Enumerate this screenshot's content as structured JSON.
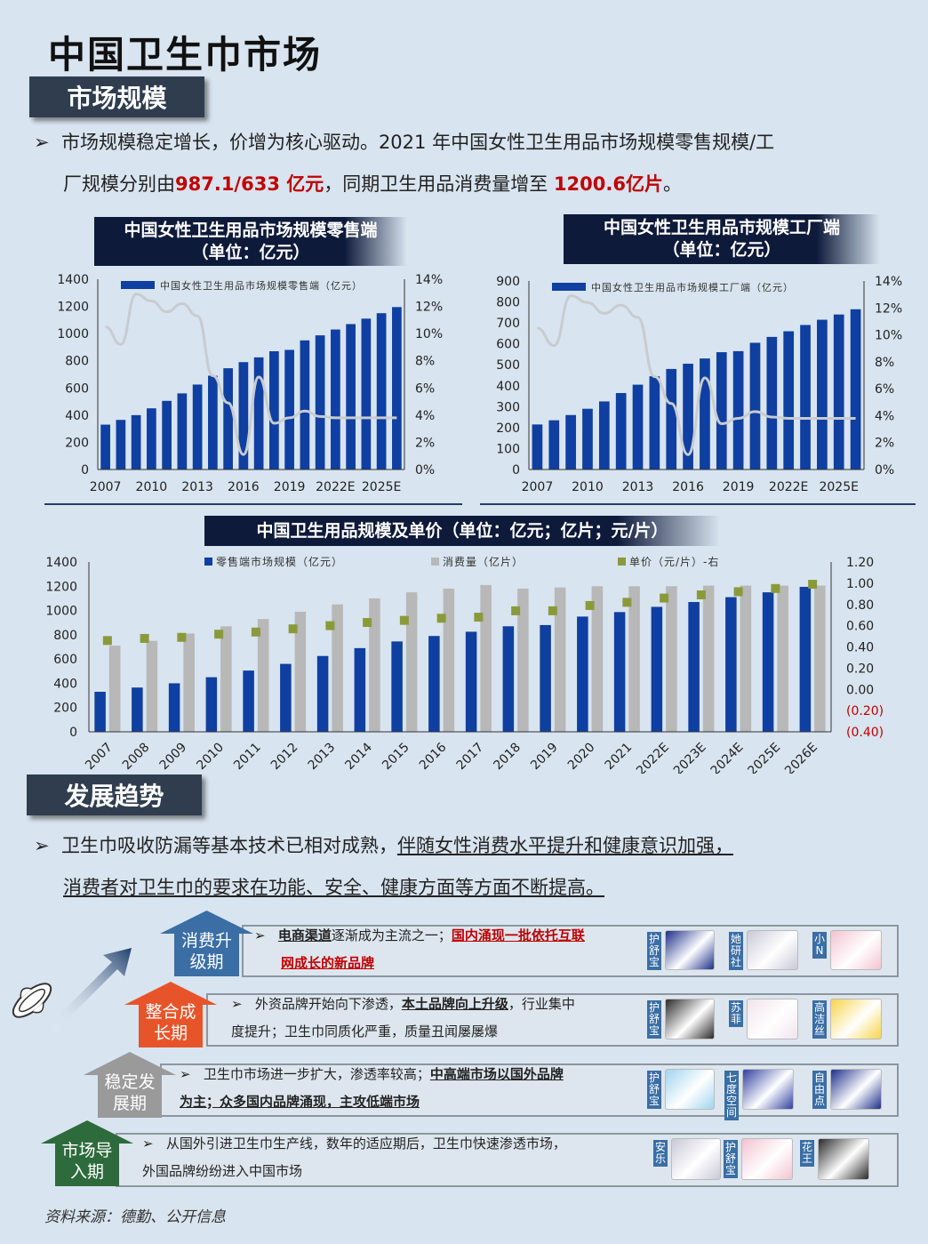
{
  "title": "中国卫生巾市场",
  "section1": {
    "label": "市场规模",
    "bullet_a": "市场规模稳定增长，价增为核心驱动。2021 年中国女性卫生用品市场规模零售规模/工",
    "bullet_b": "厂规模分别由",
    "bullet_red1": "987.1/633 亿元",
    "bullet_c": "，同期卫生用品消费量增至 ",
    "bullet_red2": "1200.6亿片",
    "bullet_d": "。"
  },
  "chart1_title": {
    "line1": "中国女性卫生用品市场规模零售端",
    "line2": "（单位：亿元）"
  },
  "chart2_title": {
    "line1": "中国女性卫生用品市规模工厂端",
    "line2": "（单位：亿元）"
  },
  "chart3_title": "中国卫生用品规模及单价（单位：亿元；亿片；元/片）",
  "chart_data": [
    {
      "type": "bar",
      "title": "中国女性卫生用品市场规模零售端（单位：亿元）",
      "categories": [
        "2007",
        "2008",
        "2009",
        "2010",
        "2011",
        "2012",
        "2013",
        "2014",
        "2015",
        "2016",
        "2017",
        "2018",
        "2019",
        "2020",
        "2021",
        "2022E",
        "2023E",
        "2024E",
        "2025E",
        "2026E"
      ],
      "xticks": [
        "2007",
        "2010",
        "2013",
        "2016",
        "2019",
        "2022E",
        "2025E"
      ],
      "series": [
        {
          "name": "中国女性卫生用品市场规模零售端（亿元）",
          "values": [
            330,
            365,
            400,
            450,
            505,
            560,
            625,
            690,
            745,
            790,
            825,
            870,
            880,
            950,
            987,
            1030,
            1070,
            1110,
            1150,
            1195
          ],
          "color": "#0f3fa0"
        }
      ],
      "line_right": {
        "values": [
          10.5,
          9.2,
          12.9,
          12.4,
          11.6,
          12.2,
          11.3,
          6.9,
          4.9,
          1.1,
          6.8,
          3.4,
          3.8,
          4.3,
          3.9,
          3.8,
          3.8,
          3.8,
          3.8,
          3.8
        ],
        "color": "#c8ccd0"
      },
      "ylim": [
        0,
        1400
      ],
      "yticks": [
        0,
        200,
        400,
        600,
        800,
        1000,
        1200,
        1400
      ],
      "y2lim": [
        0,
        14
      ],
      "y2ticks": [
        "0%",
        "2%",
        "4%",
        "6%",
        "8%",
        "10%",
        "12%",
        "14%"
      ]
    },
    {
      "type": "bar",
      "title": "中国女性卫生用品市规模工厂端（单位：亿元）",
      "categories": [
        "2007",
        "2008",
        "2009",
        "2010",
        "2011",
        "2012",
        "2013",
        "2014",
        "2015",
        "2016",
        "2017",
        "2018",
        "2019",
        "2020",
        "2021",
        "2022E",
        "2023E",
        "2024E",
        "2025E",
        "2026E"
      ],
      "xticks": [
        "2007",
        "2010",
        "2013",
        "2016",
        "2019",
        "2022E",
        "2025E"
      ],
      "series": [
        {
          "name": "中国女性卫生用品市场规模工厂端（亿元）",
          "values": [
            215,
            235,
            260,
            290,
            325,
            365,
            405,
            445,
            480,
            505,
            530,
            560,
            565,
            605,
            633,
            660,
            690,
            715,
            740,
            765
          ],
          "color": "#0f3fa0"
        }
      ],
      "line_right": {
        "values": [
          10.5,
          9.2,
          12.9,
          12.4,
          11.6,
          12.2,
          11.3,
          6.9,
          4.9,
          1.1,
          6.8,
          3.4,
          3.8,
          4.3,
          3.9,
          3.8,
          3.8,
          3.8,
          3.8,
          3.8
        ],
        "color": "#c8ccd0"
      },
      "ylim": [
        0,
        900
      ],
      "yticks": [
        0,
        100,
        200,
        300,
        400,
        500,
        600,
        700,
        800,
        900
      ],
      "y2lim": [
        0,
        14
      ],
      "y2ticks": [
        "0%",
        "2%",
        "4%",
        "6%",
        "8%",
        "10%",
        "12%",
        "14%"
      ]
    },
    {
      "type": "bar",
      "title": "中国卫生用品规模及单价（单位：亿元；亿片；元/片）",
      "categories": [
        "2007",
        "2008",
        "2009",
        "2010",
        "2011",
        "2012",
        "2013",
        "2014",
        "2015",
        "2016",
        "2017",
        "2018",
        "2019",
        "2020",
        "2021",
        "2022E",
        "2023E",
        "2024E",
        "2025E",
        "2026E"
      ],
      "series": [
        {
          "name": "零售端市场规模（亿元）",
          "values": [
            330,
            365,
            400,
            450,
            505,
            560,
            625,
            690,
            745,
            790,
            825,
            870,
            880,
            950,
            987,
            1030,
            1070,
            1110,
            1150,
            1195
          ],
          "color": "#0f3fa0"
        },
        {
          "name": "消费量（亿片）",
          "values": [
            710,
            750,
            810,
            870,
            930,
            990,
            1050,
            1100,
            1150,
            1180,
            1210,
            1180,
            1190,
            1200,
            1200,
            1200,
            1205,
            1205,
            1205,
            1205
          ],
          "color": "#b8b8b8"
        },
        {
          "name": "单价（元/片）-右",
          "values": [
            0.46,
            0.48,
            0.49,
            0.52,
            0.54,
            0.57,
            0.6,
            0.63,
            0.65,
            0.67,
            0.68,
            0.74,
            0.74,
            0.79,
            0.82,
            0.86,
            0.89,
            0.92,
            0.95,
            0.99
          ],
          "color": "#8a9a3a",
          "axis": "right"
        }
      ],
      "ylim": [
        0,
        1400
      ],
      "yticks": [
        0,
        200,
        400,
        600,
        800,
        1000,
        1200,
        1400
      ],
      "y2lim": [
        -0.4,
        1.2
      ],
      "y2ticks": [
        "(0.40)",
        "(0.20)",
        "0.00",
        "0.20",
        "0.40",
        "0.60",
        "0.80",
        "1.00",
        "1.20"
      ]
    }
  ],
  "section2": {
    "label": "发展趋势",
    "bullet_a": "卫生巾吸收防漏等基本技术已相对成熟，",
    "bullet_u1": "伴随女性消费水平提升和健康意识加强，",
    "bullet_u2": "消费者对卫生巾的要求在功能、安全、健康方面等方面不断提高。"
  },
  "stages": [
    {
      "label1": "消费升",
      "label2": "级期",
      "color": "#3a6ea5",
      "u1": "电商渠道",
      "t1": "逐渐成为主流之一；",
      "r1": "国内涌现一批依托互联",
      "r2": "网成长的新品牌",
      "brands": [
        "护舒宝",
        "她研社",
        "小N"
      ]
    },
    {
      "label1": "整合成",
      "label2": "长期",
      "color": "#e8542a",
      "t1": "外资品牌开始向下渗透，",
      "u1": "本土品牌向上升级",
      "t2": "，行业集中",
      "t3": "度提升；卫生巾同质化严重，质量丑闻屡屡爆",
      "brands": [
        "护舒宝",
        "苏菲",
        "高洁丝"
      ]
    },
    {
      "label1": "稳定发",
      "label2": "展期",
      "color": "#9a9a9a",
      "t1": "卫生巾市场进一步扩大，渗透率较高；",
      "u1": "中高端市场以国外品牌",
      "u2": "为主；众多国内品牌涌现，主攻低端市场",
      "brands": [
        "护舒宝",
        "七度空间",
        "自由点"
      ]
    },
    {
      "label1": "市场导",
      "label2": "入期",
      "color": "#2e6b3c",
      "t1": "从国外引进卫生巾生产线，数年的适应期后，卫生巾快速渗透市场，",
      "t2": "外国品牌纷纷进入中国市场",
      "brands": [
        "安乐",
        "护舒宝",
        "花王"
      ]
    }
  ],
  "source": "资料来源：德勤、公开信息"
}
